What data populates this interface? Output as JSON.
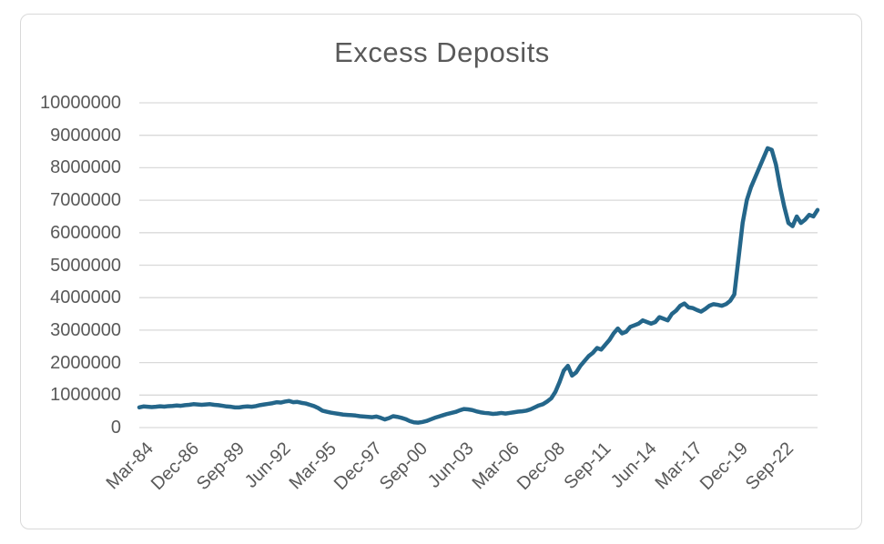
{
  "chart_data": {
    "type": "line",
    "title": "Excess Deposits",
    "legend": "none",
    "grid": true,
    "plot_bg": "#ffffff",
    "gridline_color": "#D9D9D9",
    "text_color": "#595959",
    "line_color": "#24668A",
    "ylim": [
      0,
      10000000
    ],
    "y_tick_step": 1000000,
    "y_tick_labels": [
      "0",
      "1000000",
      "2000000",
      "3000000",
      "4000000",
      "5000000",
      "6000000",
      "7000000",
      "8000000",
      "9000000",
      "10000000"
    ],
    "x_tick_labels": [
      "Mar-84",
      "Dec-86",
      "Sep-89",
      "Jun-92",
      "Mar-95",
      "Dec-97",
      "Sep-00",
      "Jun-03",
      "Mar-06",
      "Dec-08",
      "Sep-11",
      "Jun-14",
      "Mar-17",
      "Dec-19",
      "Sep-22"
    ],
    "x_label_interval": 11,
    "x_frequency": "quarterly",
    "x_start": "Mar-84",
    "x_end": "Dec-24",
    "series": [
      {
        "name": "Excess Deposits",
        "values": [
          620000,
          650000,
          640000,
          630000,
          640000,
          655000,
          645000,
          660000,
          665000,
          680000,
          670000,
          690000,
          700000,
          720000,
          710000,
          700000,
          710000,
          720000,
          700000,
          690000,
          670000,
          650000,
          640000,
          620000,
          620000,
          640000,
          650000,
          640000,
          660000,
          690000,
          710000,
          730000,
          750000,
          780000,
          770000,
          800000,
          820000,
          780000,
          790000,
          760000,
          740000,
          700000,
          660000,
          600000,
          520000,
          490000,
          460000,
          440000,
          420000,
          400000,
          390000,
          380000,
          370000,
          350000,
          340000,
          330000,
          320000,
          340000,
          300000,
          250000,
          290000,
          350000,
          330000,
          300000,
          260000,
          200000,
          160000,
          150000,
          170000,
          200000,
          250000,
          300000,
          340000,
          380000,
          420000,
          450000,
          480000,
          530000,
          570000,
          560000,
          540000,
          500000,
          470000,
          450000,
          440000,
          420000,
          430000,
          450000,
          430000,
          450000,
          470000,
          490000,
          500000,
          520000,
          560000,
          620000,
          680000,
          720000,
          800000,
          900000,
          1100000,
          1400000,
          1750000,
          1900000,
          1600000,
          1700000,
          1900000,
          2050000,
          2200000,
          2300000,
          2450000,
          2400000,
          2550000,
          2700000,
          2900000,
          3050000,
          2900000,
          2950000,
          3100000,
          3150000,
          3200000,
          3300000,
          3250000,
          3200000,
          3250000,
          3400000,
          3350000,
          3300000,
          3500000,
          3600000,
          3750000,
          3820000,
          3700000,
          3680000,
          3620000,
          3570000,
          3650000,
          3750000,
          3800000,
          3780000,
          3750000,
          3800000,
          3900000,
          4100000,
          5200000,
          6300000,
          7000000,
          7400000,
          7700000,
          8000000,
          8300000,
          8600000,
          8550000,
          8100000,
          7400000,
          6800000,
          6300000,
          6200000,
          6500000,
          6300000,
          6400000,
          6550000,
          6500000,
          6700000
        ]
      }
    ]
  }
}
